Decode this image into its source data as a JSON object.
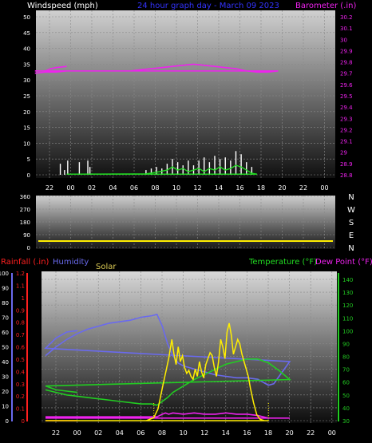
{
  "header": {
    "windspeed_label": "Windspeed (mph)",
    "title": "24 hour graph day - March 09 2023",
    "barometer_label": "Barometer (.in)"
  },
  "colors": {
    "wind": "#ffffff",
    "gust": "#ffffff",
    "wind_avg": "#22dd22",
    "barometer": "#ee22ee",
    "direction": "#ffee00",
    "humidity": "#6a6aee",
    "temperature": "#22cc22",
    "dewpoint": "#ee22ee",
    "rainfall": "#ff2020",
    "solar": "#ffee00",
    "title": "#3333ff",
    "axis_text": "#ffffff"
  },
  "x_ticks": [
    "22",
    "00",
    "02",
    "04",
    "06",
    "08",
    "10",
    "12",
    "14",
    "16",
    "18",
    "20",
    "22",
    "00"
  ],
  "chart_data": [
    {
      "type": "line",
      "name": "wind-barometer",
      "ylabel": "Windspeed (mph)",
      "y2label": "Barometer (.in)",
      "ylim": [
        0,
        50
      ],
      "y_ticks": [
        "0",
        "5",
        "10",
        "15",
        "20",
        "25",
        "30",
        "35",
        "40",
        "45",
        "50"
      ],
      "y2lim": [
        28.8,
        30.2
      ],
      "y2_ticks": [
        "28.8",
        "28.9",
        "29",
        "29.1",
        "29.2",
        "29.3",
        "29.4",
        "29.5",
        "29.6",
        "29.7",
        "29.8",
        "29.9",
        "30",
        "30.1",
        "30.2"
      ],
      "series": [
        {
          "name": "barometer",
          "axis": "y2",
          "x": [
            21,
            22,
            23,
            0,
            1,
            2,
            3,
            4,
            5,
            6,
            7,
            8,
            9,
            10,
            11,
            12,
            13,
            14,
            15,
            16,
            17,
            18,
            19,
            20,
            21,
            22,
            22.5,
            23,
            24
          ],
          "values": [
            29.7,
            29.71,
            29.71,
            29.72,
            29.72,
            29.72,
            29.72,
            29.72,
            29.72,
            29.72,
            29.73,
            29.74,
            29.75,
            29.76,
            29.77,
            29.78,
            29.77,
            29.76,
            29.75,
            29.74,
            29.72,
            29.71,
            29.71,
            29.72,
            29.72,
            29.72,
            29.74,
            29.75,
            29.76
          ]
        },
        {
          "name": "gust",
          "axis": "y",
          "points": [
            [
              0.1,
              4.5
            ],
            [
              1.2,
              4.0
            ],
            [
              2.0,
              4.5
            ],
            [
              2.2,
              2.5
            ],
            [
              7.5,
              1.5
            ],
            [
              8.0,
              2.0
            ],
            [
              8.5,
              2.5
            ],
            [
              9.0,
              2.0
            ],
            [
              9.5,
              3.5
            ],
            [
              10.0,
              5.0
            ],
            [
              10.5,
              4.0
            ],
            [
              11.0,
              3.0
            ],
            [
              11.5,
              4.5
            ],
            [
              12.0,
              3.0
            ],
            [
              12.5,
              4.5
            ],
            [
              13.0,
              5.5
            ],
            [
              13.5,
              4.0
            ],
            [
              14.0,
              6.0
            ],
            [
              14.5,
              5.0
            ],
            [
              15.0,
              5.5
            ],
            [
              15.5,
              4.5
            ],
            [
              16.0,
              7.5
            ],
            [
              16.5,
              6.5
            ],
            [
              17.0,
              4.0
            ],
            [
              17.5,
              2.5
            ],
            [
              23.4,
              3.5
            ],
            [
              23.8,
              1.5
            ]
          ]
        },
        {
          "name": "wind_avg",
          "axis": "y",
          "x": [
            0,
            7.5,
            8.5,
            9.5,
            10,
            10.5,
            11,
            11.5,
            12,
            12.5,
            13,
            13.5,
            14,
            14.5,
            15,
            15.5,
            16,
            16.5,
            17,
            17.5,
            18,
            24
          ],
          "values": [
            0.2,
            0.3,
            0.8,
            1.5,
            2.5,
            1.5,
            2.0,
            1.0,
            1.5,
            2.0,
            1.0,
            2.0,
            1.5,
            2.5,
            1.5,
            2.0,
            3.0,
            2.5,
            1.5,
            0.5,
            0.2,
            0.2
          ]
        }
      ]
    },
    {
      "type": "line",
      "name": "wind-direction",
      "ylim": [
        0,
        360
      ],
      "y_ticks": [
        "0",
        "90",
        "180",
        "270",
        "360"
      ],
      "compass_labels": [
        "N",
        "W",
        "S",
        "E",
        "N"
      ],
      "series": [
        {
          "name": "direction",
          "x": [
            0,
            24
          ],
          "values": [
            45,
            45
          ]
        }
      ]
    },
    {
      "type": "line",
      "name": "rain-humidity-temp",
      "left_labels": {
        "rainfall": "Rainfall (.in)",
        "humidity": "Humidity",
        "solar": "Solar"
      },
      "right_labels": {
        "temperature": "Temperature (°F)",
        "dewpoint": "Dew Point (°F)"
      },
      "humidity_ticks": [
        "0",
        "10",
        "20",
        "30",
        "40",
        "50",
        "60",
        "70",
        "80",
        "90",
        "100"
      ],
      "rain_ticks": [
        "0",
        "0.1",
        "0.2",
        "0.3",
        "0.4",
        "0.5",
        "0.6",
        "0.7",
        "0.8",
        "0.9",
        "1",
        "1.1",
        "1.2"
      ],
      "temp_ticks": [
        "30",
        "40",
        "50",
        "60",
        "70",
        "80",
        "90",
        "100",
        "110",
        "120",
        "130",
        "140"
      ],
      "humidity_lim": [
        0,
        100
      ],
      "rain_lim": [
        0,
        1.2
      ],
      "temp_lim": [
        25,
        145
      ],
      "series": [
        {
          "name": "humidity",
          "x": [
            21,
            22,
            23,
            0,
            1,
            2,
            3,
            4,
            5,
            6,
            7,
            7.5,
            8,
            8.5,
            9,
            9.5,
            10,
            11,
            12,
            13,
            14,
            15,
            16,
            17,
            18,
            18.5,
            19,
            20,
            21,
            22,
            23,
            24
          ],
          "values": [
            44,
            50,
            55,
            59,
            62,
            64,
            66,
            67,
            68,
            70,
            71,
            72,
            64,
            52,
            44,
            39,
            37,
            35,
            33,
            31,
            30,
            29,
            29,
            28,
            24,
            25,
            30,
            40,
            49,
            56,
            60,
            61
          ]
        },
        {
          "name": "temperature",
          "x": [
            21,
            22,
            23,
            0,
            1,
            2,
            3,
            4,
            5,
            6,
            7,
            7.5,
            8,
            8.5,
            9,
            10,
            11,
            12,
            13,
            14,
            15,
            16,
            17,
            18,
            19,
            20,
            21,
            22,
            23,
            24
          ],
          "values": [
            54,
            52,
            50,
            49,
            48,
            47,
            46,
            45,
            44,
            43,
            43,
            42,
            45,
            48,
            52,
            57,
            62,
            66,
            70,
            74,
            76,
            78,
            78,
            75,
            69,
            62,
            57,
            54,
            53,
            52
          ]
        },
        {
          "name": "dewpoint",
          "x": [
            21,
            22,
            23,
            0,
            1,
            2,
            3,
            4,
            5,
            6,
            7,
            7.5,
            8,
            8.3,
            8.6,
            9,
            10,
            11,
            12,
            13,
            14,
            15,
            16,
            17,
            17.5,
            18,
            19,
            20,
            21,
            22,
            23,
            24
          ],
          "values": [
            33,
            33,
            33,
            33,
            33,
            33,
            33,
            33,
            33,
            33,
            33,
            33,
            35,
            36,
            35,
            36,
            35,
            36,
            35,
            35,
            36,
            35,
            35,
            34,
            33,
            32,
            32,
            32,
            32,
            32,
            32,
            32
          ]
        },
        {
          "name": "solar",
          "axis": "humidity",
          "x": [
            21,
            6.5,
            7.2,
            7.6,
            8.0,
            8.3,
            8.6,
            8.9,
            9.1,
            9.3,
            9.5,
            9.7,
            9.9,
            10.1,
            10.3,
            10.5,
            10.7,
            10.9,
            11.1,
            11.3,
            11.5,
            11.7,
            11.9,
            12.1,
            12.3,
            12.5,
            12.7,
            12.9,
            13.1,
            13.3,
            13.5,
            13.7,
            13.9,
            14.1,
            14.3,
            14.5,
            14.7,
            14.9,
            15.1,
            15.3,
            15.5,
            15.7,
            15.9,
            16.1,
            16.3,
            16.6,
            16.9,
            17.2,
            17.6,
            18.0,
            24
          ],
          "values": [
            0,
            0,
            2,
            8,
            22,
            32,
            42,
            55,
            45,
            38,
            50,
            40,
            44,
            36,
            32,
            34,
            30,
            28,
            35,
            30,
            40,
            33,
            29,
            38,
            42,
            46,
            44,
            36,
            30,
            40,
            55,
            50,
            42,
            60,
            66,
            58,
            45,
            50,
            55,
            52,
            45,
            40,
            35,
            30,
            22,
            12,
            4,
            1,
            0,
            0,
            0
          ]
        },
        {
          "name": "rainfall",
          "axis": "rain",
          "x": [
            21,
            24
          ],
          "values": [
            0,
            0
          ]
        }
      ]
    }
  ]
}
